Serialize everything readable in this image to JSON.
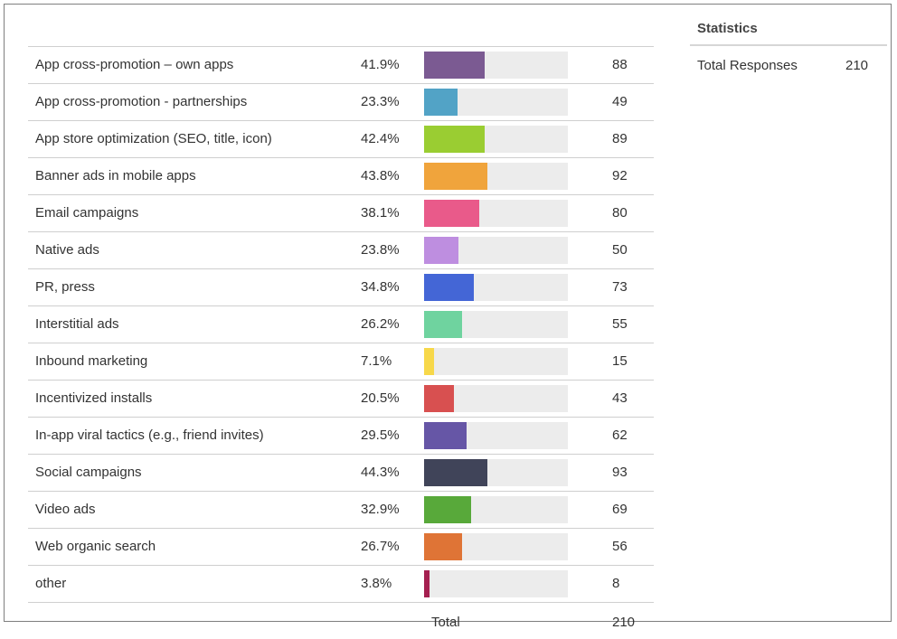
{
  "chart_data": {
    "type": "bar",
    "orientation": "horizontal",
    "categories": [
      "App cross-promotion – own apps",
      "App cross-promotion - partnerships",
      "App store optimization (SEO, title, icon)",
      "Banner ads in mobile apps",
      "Email campaigns",
      "Native ads",
      "PR, press",
      "Interstitial ads",
      "Inbound marketing",
      "Incentivized installs",
      "In-app viral tactics (e.g., friend invites)",
      "Social campaigns",
      "Video ads",
      "Web organic search",
      "other"
    ],
    "percent_labels": [
      "41.9%",
      "23.3%",
      "42.4%",
      "43.8%",
      "38.1%",
      "23.8%",
      "34.8%",
      "26.2%",
      "7.1%",
      "20.5%",
      "29.5%",
      "44.3%",
      "32.9%",
      "26.7%",
      "3.8%"
    ],
    "percent_values": [
      41.9,
      23.3,
      42.4,
      43.8,
      38.1,
      23.8,
      34.8,
      26.2,
      7.1,
      20.5,
      29.5,
      44.3,
      32.9,
      26.7,
      3.8
    ],
    "counts": [
      88,
      49,
      89,
      92,
      80,
      50,
      73,
      55,
      15,
      43,
      62,
      93,
      69,
      56,
      8
    ],
    "colors": [
      "#7b5a92",
      "#52a3c6",
      "#9acd32",
      "#f0a43c",
      "#e95a8a",
      "#be8ee0",
      "#4466d6",
      "#6fd39f",
      "#f7d84a",
      "#d85050",
      "#6656a6",
      "#404459",
      "#58a93a",
      "#df7436",
      "#a52050"
    ],
    "xlim": [
      0,
      100
    ],
    "grid": false,
    "legend": "none",
    "total_label": "Total",
    "total_value": "210"
  },
  "statistics": {
    "title": "Statistics",
    "items": [
      {
        "label": "Total Responses",
        "value": "210"
      }
    ]
  }
}
